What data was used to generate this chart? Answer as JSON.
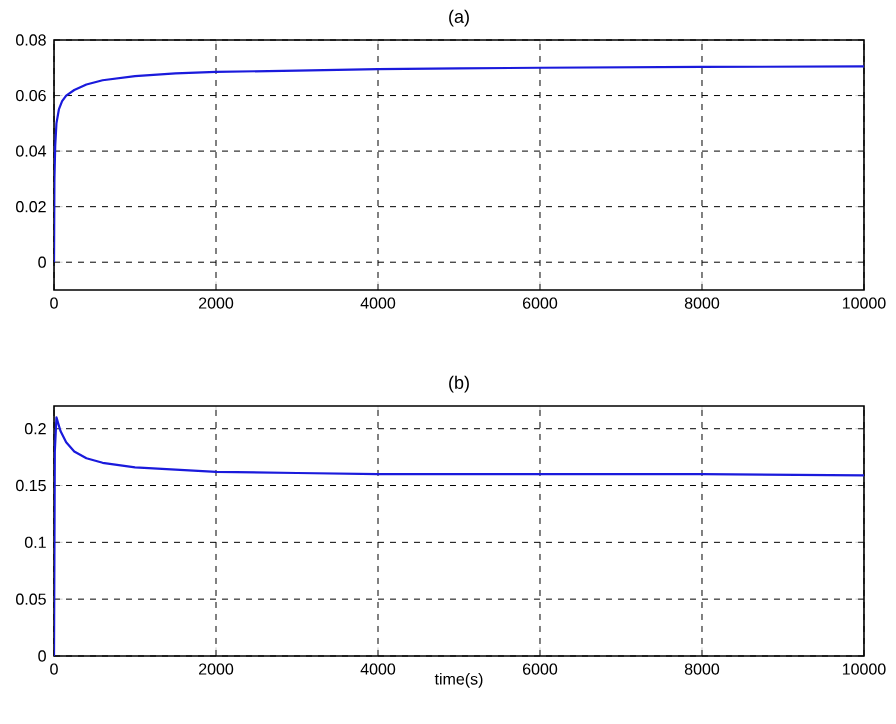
{
  "chart_data": [
    {
      "type": "line",
      "title": "(a)",
      "grid": true,
      "xlim": [
        0,
        10000
      ],
      "xticks": [
        0,
        2000,
        4000,
        6000,
        8000,
        10000
      ],
      "ylim": [
        -0.01,
        0.08
      ],
      "yticks": [
        0,
        0.02,
        0.04,
        0.06,
        0.08
      ],
      "series": [
        {
          "color": "#1a1adc",
          "x": [
            0,
            5,
            15,
            30,
            60,
            100,
            150,
            250,
            400,
            600,
            1000,
            1500,
            2000,
            3000,
            4000,
            5000,
            6000,
            8000,
            10000
          ],
          "values": [
            0,
            0.03,
            0.042,
            0.05,
            0.055,
            0.058,
            0.06,
            0.062,
            0.064,
            0.0655,
            0.067,
            0.068,
            0.0685,
            0.069,
            0.0695,
            0.0698,
            0.07,
            0.0703,
            0.0705
          ]
        }
      ]
    },
    {
      "type": "line",
      "title": "(b)",
      "xlabel": "time(s)",
      "grid": true,
      "xlim": [
        0,
        10000
      ],
      "xticks": [
        0,
        2000,
        4000,
        6000,
        8000,
        10000
      ],
      "ylim": [
        0,
        0.22
      ],
      "yticks": [
        0,
        0.05,
        0.1,
        0.15,
        0.2
      ],
      "series": [
        {
          "color": "#1a1adc",
          "x": [
            0,
            10,
            30,
            80,
            150,
            250,
            400,
            600,
            1000,
            1500,
            2000,
            3000,
            4000,
            5000,
            6000,
            8000,
            10000
          ],
          "values": [
            0,
            0.18,
            0.21,
            0.198,
            0.188,
            0.18,
            0.174,
            0.17,
            0.166,
            0.164,
            0.162,
            0.161,
            0.16,
            0.16,
            0.16,
            0.16,
            0.159
          ]
        }
      ]
    }
  ]
}
